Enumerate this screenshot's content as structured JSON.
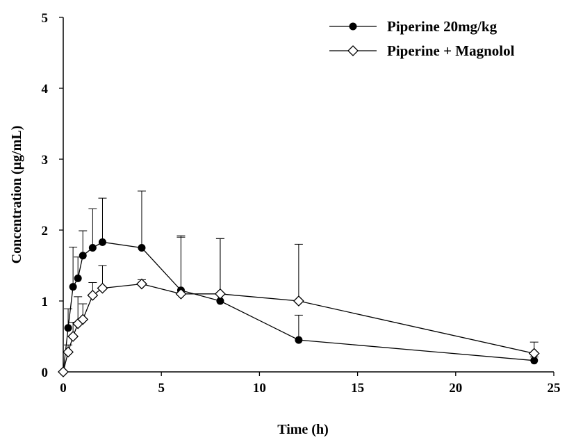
{
  "chart_data": {
    "type": "line",
    "title": "",
    "xlabel": "Time (h)",
    "ylabel": "Concentration (µg/mL)",
    "xlim": [
      0,
      25
    ],
    "ylim": [
      0,
      5
    ],
    "x_ticks": [
      "0",
      "5",
      "10",
      "15",
      "20",
      "25"
    ],
    "y_ticks": [
      "0",
      "1",
      "2",
      "3",
      "4",
      "5"
    ],
    "grid": false,
    "legend_position": "top-right",
    "series": [
      {
        "name": "Piperine 20mg/kg",
        "marker": "filled-circle",
        "color": "#000000",
        "x": [
          0,
          0.25,
          0.5,
          0.75,
          1,
          1.5,
          2,
          4,
          6,
          8,
          12,
          24
        ],
        "y": [
          0,
          0.62,
          1.2,
          1.32,
          1.64,
          1.75,
          1.83,
          1.75,
          1.15,
          1.0,
          0.45,
          0.16
        ],
        "error": [
          0,
          0.27,
          0.56,
          0.3,
          0.35,
          0.55,
          0.62,
          0.8,
          0.77,
          0.88,
          0.35,
          0.05
        ]
      },
      {
        "name": "Piperine + Magnolol",
        "marker": "open-diamond",
        "color": "#000000",
        "x": [
          0,
          0.25,
          0.5,
          0.75,
          1,
          1.5,
          2,
          4,
          6,
          8,
          12,
          24
        ],
        "y": [
          0,
          0.28,
          0.5,
          0.68,
          0.74,
          1.08,
          1.18,
          1.24,
          1.1,
          1.1,
          1.0,
          0.26
        ],
        "error": [
          0,
          0.1,
          0.2,
          0.38,
          0.22,
          0.18,
          0.32,
          0.06,
          0.8,
          0.78,
          0.8,
          0.16
        ]
      }
    ]
  }
}
